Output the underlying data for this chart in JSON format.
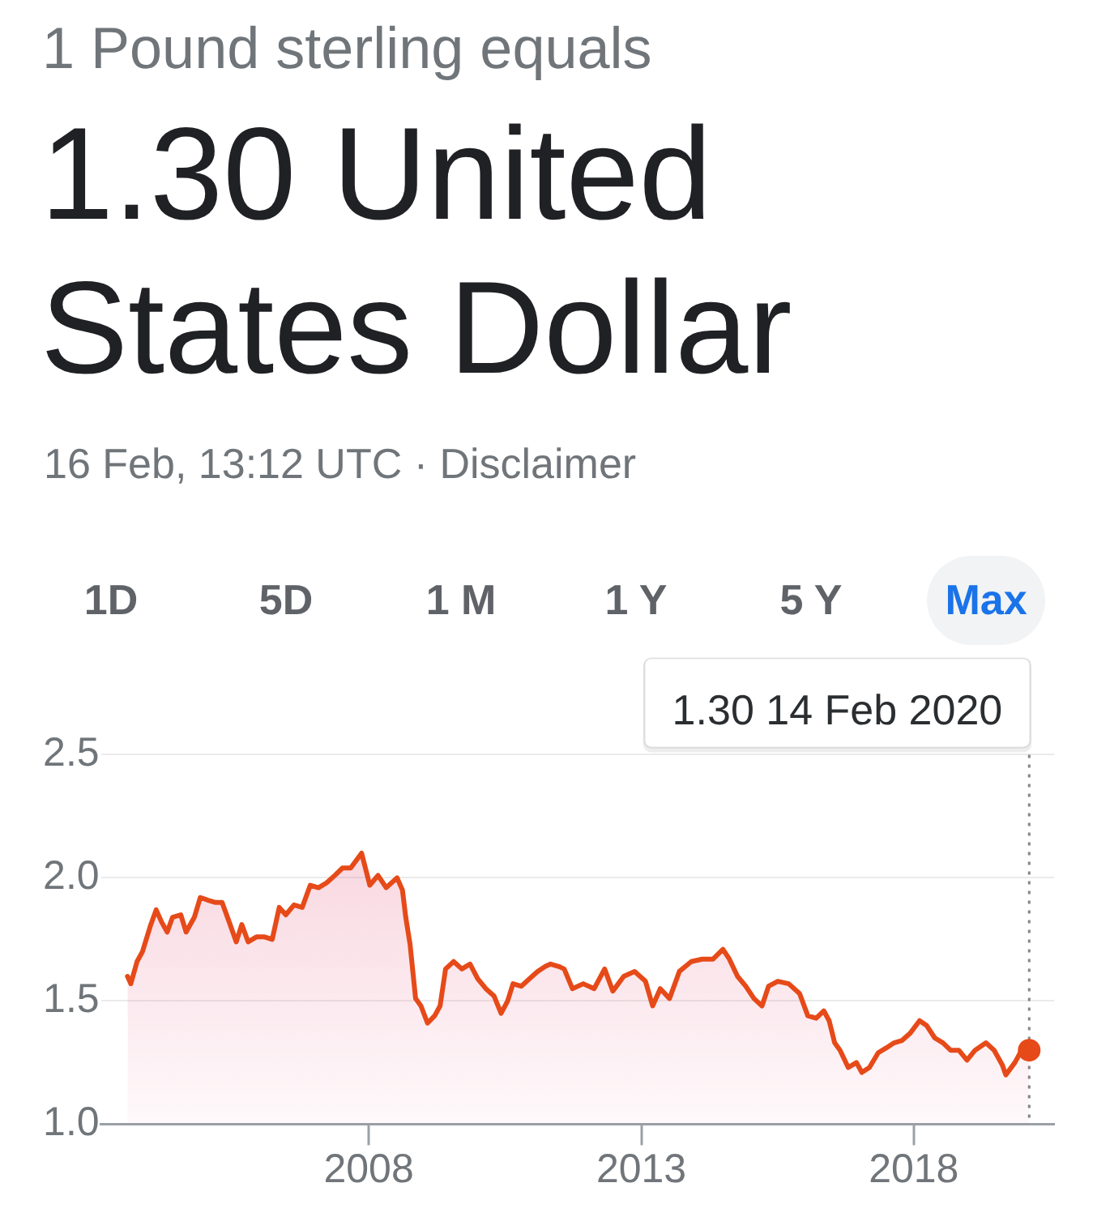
{
  "chart_data": {
    "type": "area",
    "subtitle": "1 Pound sterling equals",
    "title": "1.30 United States Dollar",
    "annotations": [
      "16 Feb, 13:12 UTC · Disclaimer",
      "1D",
      "5D",
      "1 M",
      "1 Y",
      "5 Y",
      "Max"
    ],
    "series": [
      {
        "color": "#e64a19",
        "x": [
          "2003-07-29",
          "2003-08-20",
          "2003-10-01",
          "2003-11-06",
          "2004-01-01",
          "2004-02-06",
          "2004-03-14",
          "2004-04-20",
          "2004-05-26",
          "2004-07-20",
          "2004-08-25",
          "2004-10-19",
          "2004-11-28",
          "2005-01-15",
          "2005-03-10",
          "2005-04-23",
          "2005-06-10",
          "2005-07-27",
          "2005-09-02",
          "2005-10-15",
          "2005-12-09",
          "2006-02-02",
          "2006-03-25",
          "2006-05-11",
          "2006-06-24",
          "2006-08-18",
          "2006-10-12",
          "2006-12-05",
          "2007-01-29",
          "2007-03-25",
          "2007-05-19",
          "2007-07-09",
          "2007-09-02",
          "2007-11-14",
          "2008-01-08",
          "2008-03-03",
          "2008-04-27",
          "2008-07-09",
          "2008-08-14",
          "2008-09-05",
          "2008-10-04",
          "2008-11-10",
          "2008-12-16",
          "2009-01-29",
          "2009-03-18",
          "2009-04-23",
          "2009-05-30",
          "2009-07-23",
          "2009-09-16",
          "2009-11-10",
          "2010-01-01",
          "2010-02-24",
          "2010-04-20",
          "2010-06-06",
          "2010-07-20",
          "2010-08-25",
          "2010-10-19",
          "2010-12-13",
          "2011-02-06",
          "2011-03-29",
          "2011-05-04",
          "2011-06-28",
          "2011-08-03",
          "2011-09-27",
          "2011-12-09",
          "2012-02-20",
          "2012-04-30",
          "2012-06-24",
          "2012-09-05",
          "2012-11-17",
          "2013-01-29",
          "2013-03-18",
          "2013-05-08",
          "2013-07-09",
          "2013-09-13",
          "2013-12-02",
          "2014-02-13",
          "2014-04-27",
          "2014-07-02",
          "2014-08-14",
          "2014-10-08",
          "2014-12-02",
          "2015-01-26",
          "2015-03-21",
          "2015-05-04",
          "2015-07-05",
          "2015-09-16",
          "2015-11-28",
          "2016-01-22",
          "2016-03-18",
          "2016-05-08",
          "2016-06-13",
          "2016-07-20",
          "2016-08-25",
          "2016-10-19",
          "2016-12-13",
          "2017-01-18",
          "2017-03-10",
          "2017-05-08",
          "2017-07-02",
          "2017-08-22",
          "2017-10-15",
          "2017-12-09",
          "2018-02-09",
          "2018-03-29",
          "2018-05-22",
          "2018-07-16",
          "2018-09-05",
          "2018-10-30",
          "2018-12-24",
          "2019-02-16",
          "2019-04-30",
          "2019-06-24",
          "2019-08-18",
          "2019-09-10",
          "2019-11-10",
          "2019-12-25",
          "2020-02-14"
        ],
        "values": [
          1.6,
          1.57,
          1.66,
          1.7,
          1.81,
          1.87,
          1.82,
          1.78,
          1.84,
          1.85,
          1.78,
          1.84,
          1.92,
          1.91,
          1.9,
          1.9,
          1.82,
          1.74,
          1.81,
          1.74,
          1.76,
          1.76,
          1.75,
          1.88,
          1.85,
          1.89,
          1.88,
          1.97,
          1.96,
          1.98,
          2.01,
          2.04,
          2.04,
          2.1,
          1.97,
          2.01,
          1.96,
          2.0,
          1.95,
          1.84,
          1.73,
          1.51,
          1.48,
          1.41,
          1.44,
          1.48,
          1.63,
          1.66,
          1.63,
          1.65,
          1.59,
          1.55,
          1.52,
          1.45,
          1.5,
          1.57,
          1.56,
          1.59,
          1.62,
          1.64,
          1.65,
          1.64,
          1.63,
          1.55,
          1.57,
          1.55,
          1.63,
          1.54,
          1.6,
          1.62,
          1.58,
          1.48,
          1.55,
          1.51,
          1.62,
          1.66,
          1.67,
          1.67,
          1.71,
          1.67,
          1.6,
          1.56,
          1.51,
          1.48,
          1.56,
          1.58,
          1.57,
          1.53,
          1.44,
          1.43,
          1.46,
          1.42,
          1.33,
          1.3,
          1.23,
          1.25,
          1.21,
          1.23,
          1.29,
          1.31,
          1.33,
          1.34,
          1.37,
          1.42,
          1.4,
          1.35,
          1.33,
          1.3,
          1.3,
          1.26,
          1.3,
          1.33,
          1.3,
          1.24,
          1.2,
          1.25,
          1.3,
          1.3
        ]
      },
      {
        "type": "scatter",
        "color": "#e64a19",
        "marker": "circle",
        "x": [
          "2020-02-14"
        ],
        "values": [
          1.3
        ]
      }
    ],
    "xlim": [
      "2003-02",
      "2020-08"
    ],
    "xticks": [
      "2008",
      "2013",
      "2018"
    ],
    "ylim": [
      1,
      2.5
    ],
    "yticks": [
      {
        "value": 1,
        "label": "1.0"
      },
      1.5,
      {
        "value": 2,
        "label": "2.0"
      },
      2.5
    ],
    "grid": "y",
    "ref_lines": [
      {
        "axis": "x",
        "value": "2020-02-14",
        "label": "1.30 14 Feb 2020",
        "color": "#80868b",
        "line_style": "dotted"
      }
    ]
  }
}
